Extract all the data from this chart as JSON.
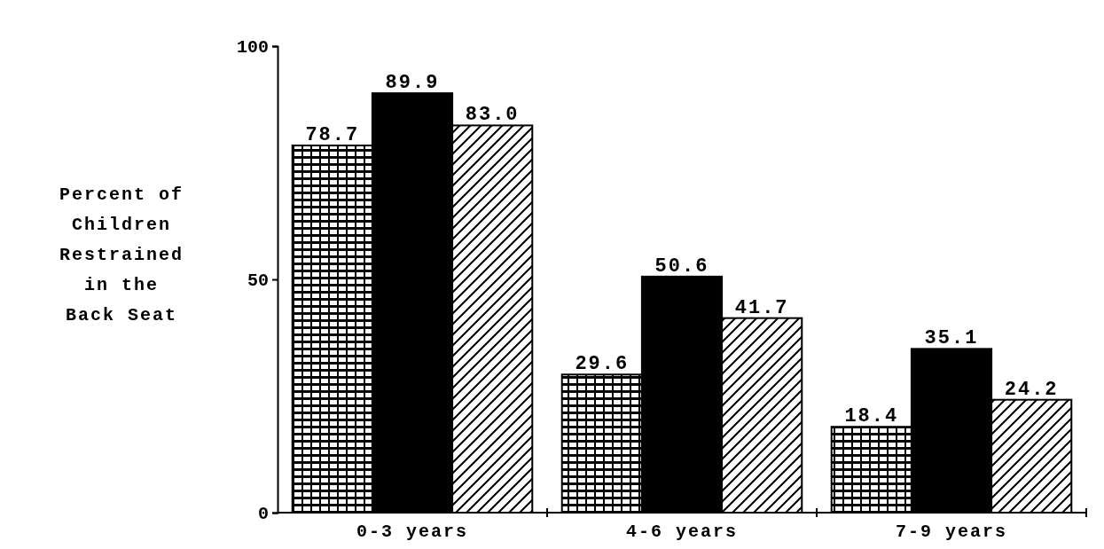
{
  "chart_data": {
    "type": "bar",
    "ylabel": "Percent of\nChildren\nRestrained\nin the\nBack Seat",
    "categories": [
      "0-3 years",
      "4-6 years",
      "7-9 years"
    ],
    "series": [
      {
        "color": "#000000",
        "values": [
          78.7,
          29.6,
          18.4
        ]
      },
      {
        "color": "#000000",
        "values": [
          89.9,
          50.6,
          35.1
        ]
      },
      {
        "color": "#000000",
        "values": [
          83.0,
          41.7,
          24.2
        ]
      }
    ],
    "value_labels": [
      [
        "78.7",
        "29.6",
        "18.4"
      ],
      [
        "89.9",
        "50.6",
        "35.1"
      ],
      [
        "83.0",
        "41.7",
        "24.2"
      ]
    ],
    "ylim": [
      0,
      100
    ],
    "yticks": [
      {
        "value": 0,
        "label": "0"
      },
      {
        "value": 50,
        "label": "50"
      },
      {
        "value": 100,
        "label": "100"
      }
    ],
    "grid": false
  }
}
